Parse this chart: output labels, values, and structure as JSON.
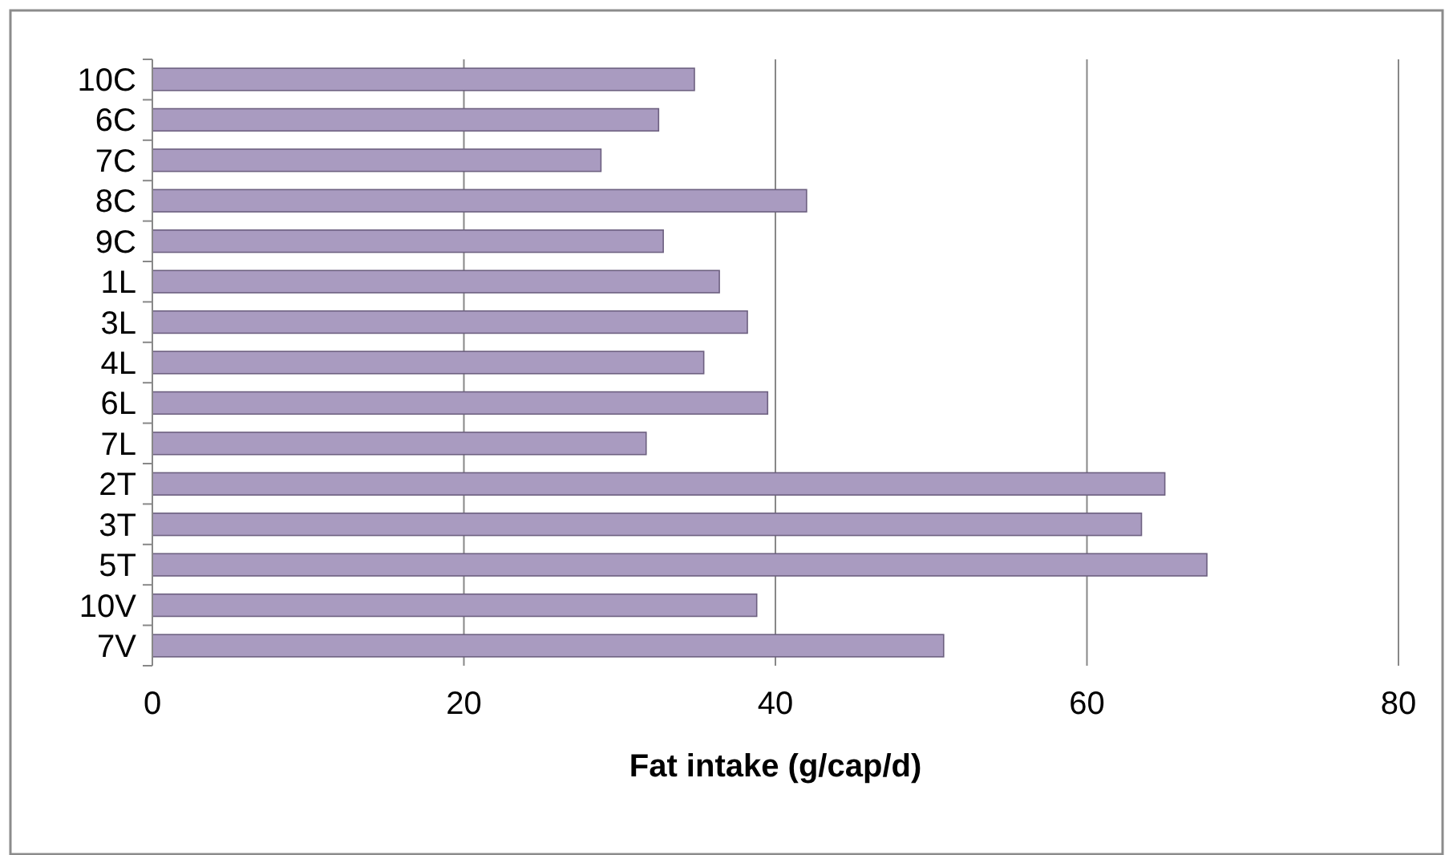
{
  "chart_data": {
    "type": "bar",
    "orientation": "horizontal",
    "xlabel": "Fat intake (g/cap/d)",
    "categories": [
      "10C",
      "6C",
      "7C",
      "8C",
      "9C",
      "1L",
      "3L",
      "4L",
      "6L",
      "7L",
      "2T",
      "3T",
      "5T",
      "10V",
      "7V"
    ],
    "values": [
      34.8,
      32.5,
      28.8,
      42,
      32.8,
      36.4,
      38.2,
      35.4,
      39.5,
      31.7,
      65,
      63.5,
      67.7,
      38.8,
      50.8
    ],
    "color": "#a99bc0",
    "xlim": [
      0,
      80
    ],
    "xticks": [
      0,
      20,
      40,
      60,
      80
    ],
    "grid": "x"
  }
}
